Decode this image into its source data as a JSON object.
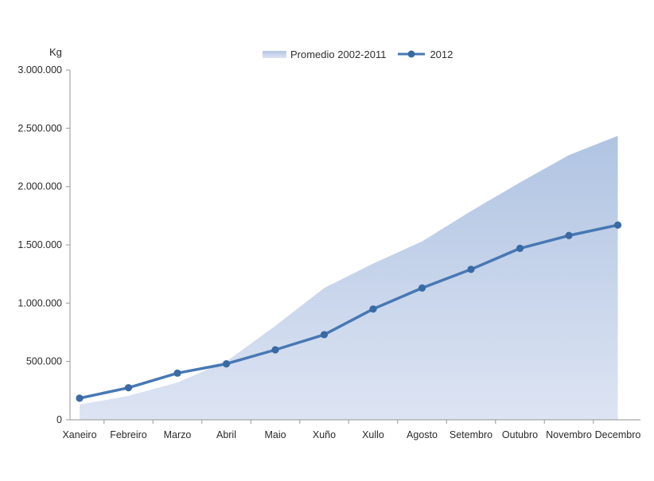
{
  "chart_data": {
    "type": "area",
    "subtype": "combo-area-line",
    "title": "",
    "ylabel": "Kg",
    "xlabel": "",
    "grid": false,
    "legend_position": "top-center",
    "categories": [
      "Xaneiro",
      "Febreiro",
      "Marzo",
      "Abril",
      "Maio",
      "Xuño",
      "Xullo",
      "Agosto",
      "Setembro",
      "Outubro",
      "Novembro",
      "Decembro"
    ],
    "series": [
      {
        "name": "Promedio 2002-2011",
        "type": "area",
        "values": [
          130000,
          205000,
          320000,
          500000,
          805000,
          1130000,
          1340000,
          1530000,
          1790000,
          2035000,
          2270000,
          2435000
        ]
      },
      {
        "name": "2012",
        "type": "line",
        "values": [
          185000,
          275000,
          400000,
          480000,
          600000,
          730000,
          950000,
          1130000,
          1290000,
          1470000,
          1580000,
          1670000
        ]
      }
    ],
    "ylim": [
      0,
      3000000
    ],
    "y_tick_values": [
      0,
      500000,
      1000000,
      1500000,
      2000000,
      2500000,
      3000000
    ],
    "y_tick_labels": [
      "0",
      "500.000",
      "1.000.000",
      "1.500.000",
      "2.000.000",
      "2.500.000",
      "3.000.000"
    ]
  },
  "colors": {
    "area_fill_top": "#b0c4e2",
    "area_fill_bottom": "#dde4f3",
    "line": "#4878b4",
    "marker": "#3a6aa4",
    "axis": "#a6a6a6",
    "tick_text": "#2a2a2a"
  }
}
